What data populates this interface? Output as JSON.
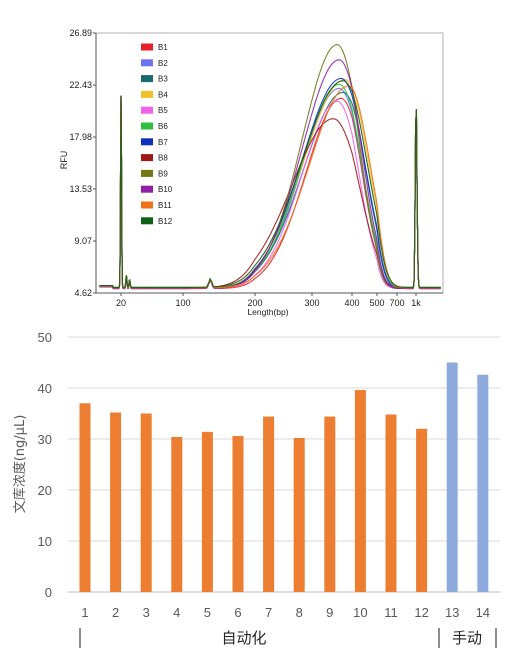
{
  "chart_data": [
    {
      "type": "line",
      "ylabel": "RFU",
      "xlabel": "Length(bp)",
      "y_ticks": [
        "4.62",
        "9.07",
        "13.53",
        "17.98",
        "22.43",
        "26.89"
      ],
      "x_ticks": [
        "20",
        "100",
        "200",
        "300",
        "400",
        "500",
        "700",
        "1k"
      ],
      "ylim": [
        4.62,
        26.89
      ],
      "x_scale": "log",
      "series": [
        {
          "name": "B1",
          "color": "#e8202a",
          "peak_bp": 370,
          "peak_rfu": 21.3
        },
        {
          "name": "B2",
          "color": "#6b73f2",
          "peak_bp": 365,
          "peak_rfu": 22.1
        },
        {
          "name": "B3",
          "color": "#1a6b6b",
          "peak_bp": 375,
          "peak_rfu": 21.7
        },
        {
          "name": "B4",
          "color": "#f0c028",
          "peak_bp": 380,
          "peak_rfu": 22.9
        },
        {
          "name": "B5",
          "color": "#f060e8",
          "peak_bp": 360,
          "peak_rfu": 21.0
        },
        {
          "name": "B6",
          "color": "#30c040",
          "peak_bp": 365,
          "peak_rfu": 22.4
        },
        {
          "name": "B7",
          "color": "#1030c0",
          "peak_bp": 370,
          "peak_rfu": 23.0
        },
        {
          "name": "B8",
          "color": "#a01818",
          "peak_bp": 350,
          "peak_rfu": 19.5
        },
        {
          "name": "B9",
          "color": "#707818",
          "peak_bp": 360,
          "peak_rfu": 25.8
        },
        {
          "name": "B10",
          "color": "#9020a8",
          "peak_bp": 365,
          "peak_rfu": 24.6
        },
        {
          "name": "B11",
          "color": "#f07018",
          "peak_bp": 390,
          "peak_rfu": 22.3
        },
        {
          "name": "B12",
          "color": "#106018",
          "peak_bp": 375,
          "peak_rfu": 22.7
        }
      ],
      "marker_peaks_bp": [
        20,
        1000
      ],
      "marker_peak_rfu": 21.5,
      "baseline_rfu": 5.0
    },
    {
      "type": "bar",
      "ylabel": "文库浓度(ng/μL)",
      "ylim": [
        0,
        50
      ],
      "y_ticks": [
        "0",
        "10",
        "20",
        "30",
        "40",
        "50"
      ],
      "grid": true,
      "categories": [
        "1",
        "2",
        "3",
        "4",
        "5",
        "6",
        "7",
        "8",
        "9",
        "10",
        "11",
        "12",
        "13",
        "14"
      ],
      "values": [
        37.0,
        35.2,
        35.0,
        30.4,
        31.4,
        30.6,
        34.4,
        30.2,
        34.4,
        39.6,
        34.8,
        32.0,
        45.0,
        42.6
      ],
      "colors": [
        "#ed7d31",
        "#ed7d31",
        "#ed7d31",
        "#ed7d31",
        "#ed7d31",
        "#ed7d31",
        "#ed7d31",
        "#ed7d31",
        "#ed7d31",
        "#ed7d31",
        "#ed7d31",
        "#ed7d31",
        "#8faadc",
        "#8faadc"
      ],
      "groups": [
        {
          "label": "自动化",
          "from": "1",
          "to": "12"
        },
        {
          "label": "手动",
          "from": "13",
          "to": "14"
        }
      ]
    }
  ]
}
